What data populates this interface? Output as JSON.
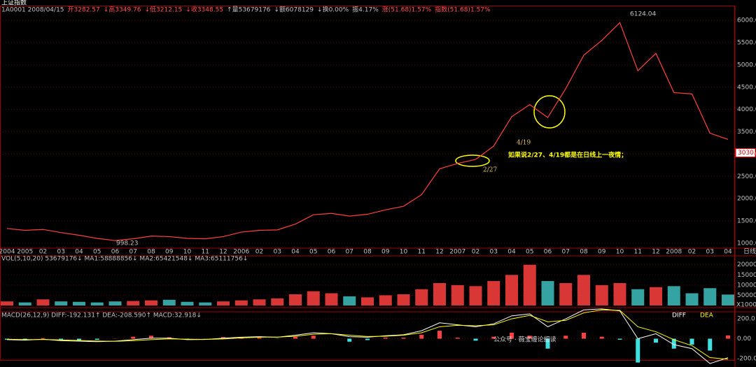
{
  "header": {
    "title": "上证指数",
    "info": [
      {
        "text": "1A0001 2008/04/15",
        "color": "#c0c0c0"
      },
      {
        "text": "开3282.57",
        "color": "#ff5050"
      },
      {
        "text": "↓高3349.76",
        "color": "#ff5050"
      },
      {
        "text": "↓低3212.15",
        "color": "#ff5050"
      },
      {
        "text": "↓收3348.55",
        "color": "#ff5050"
      },
      {
        "text": "↑量53679176",
        "color": "#c0c0c0"
      },
      {
        "text": "↓额6078129",
        "color": "#c0c0c0"
      },
      {
        "text": "↓换0.00%",
        "color": "#c0c0c0"
      },
      {
        "text": "振4.17%",
        "color": "#c0c0c0"
      },
      {
        "text": "涨(51.68)1.57%",
        "color": "#ff5050"
      },
      {
        "text": "指数(51.68)1.57%",
        "color": "#ff5050"
      }
    ]
  },
  "chart_data": [
    {
      "type": "line",
      "color": "#ff4040",
      "categories": [
        "2004",
        "2005",
        "02",
        "03",
        "04",
        "05",
        "06",
        "07",
        "08",
        "09",
        "10",
        "11",
        "12",
        "2006",
        "02",
        "03",
        "04",
        "05",
        "06",
        "07",
        "08",
        "09",
        "10",
        "11",
        "12",
        "2007",
        "02",
        "03",
        "04",
        "05",
        "06",
        "07",
        "08",
        "09",
        "10",
        "11",
        "12",
        "2008",
        "02",
        "03",
        "04"
      ],
      "values": [
        1330,
        1290,
        1310,
        1240,
        1180,
        1110,
        1060,
        1100,
        1160,
        1150,
        1110,
        1100,
        1150,
        1250,
        1290,
        1300,
        1430,
        1640,
        1670,
        1610,
        1650,
        1750,
        1830,
        2090,
        2670,
        2790,
        2880,
        3180,
        3840,
        4110,
        3820,
        4470,
        5220,
        5550,
        5950,
        4870,
        5260,
        4380,
        4350,
        3470,
        3330
      ],
      "x_end_label": "日线",
      "ylim": [
        890,
        6300
      ],
      "yticks": [
        {
          "value": 1000,
          "label": "1000.00"
        },
        {
          "value": 1500,
          "label": "1500.00"
        },
        {
          "value": 2000,
          "label": "2000.00"
        },
        {
          "value": 2500,
          "label": "2500.00"
        },
        {
          "value": 3000,
          "label": "3000.00"
        },
        {
          "value": 3500,
          "label": "3500.00"
        },
        {
          "value": 4000,
          "label": "4000.00"
        },
        {
          "value": 4500,
          "label": "4500.00"
        },
        {
          "value": 5000,
          "label": "5000.00"
        },
        {
          "value": 5500,
          "label": "5500.00"
        },
        {
          "value": 6000,
          "label": "6000.00"
        }
      ],
      "grid": true,
      "high_label": "6124.04",
      "low_label": "998.23",
      "price_box": {
        "value": 3030,
        "label": "3030.0"
      },
      "annotations": [
        "2/27",
        "4/19",
        "如果说2/27、4/19都是在日线上一夜情；"
      ]
    },
    {
      "type": "bar",
      "color": "#ff4040",
      "title": "VOL(5,10,20)  53679176↓ MA1:58888856↓ MA2:65421548↓ MA3:65111756↓",
      "values": [
        20000,
        15000,
        30000,
        20000,
        18000,
        15000,
        20000,
        22000,
        25000,
        28000,
        18000,
        15000,
        20000,
        25000,
        30000,
        35000,
        55000,
        70000,
        60000,
        45000,
        40000,
        50000,
        55000,
        80000,
        110000,
        100000,
        95000,
        120000,
        150000,
        200000,
        120000,
        110000,
        150000,
        100000,
        110000,
        80000,
        90000,
        95000,
        60000,
        85000,
        53679
      ],
      "ylim": [
        0,
        230000
      ],
      "yticks": [
        50000,
        100000,
        150000,
        200000
      ],
      "unit_label": "X1000"
    },
    {
      "type": "macd",
      "title": "MACD(26,12,9) DIFF:-192.131↑ DEA:-208.590↑ MACD:32.918↓",
      "series": [
        {
          "name": "DIFF",
          "color": "#ffffff",
          "values": [
            -10,
            -15,
            -5,
            -20,
            -25,
            -30,
            -25,
            -10,
            5,
            5,
            -10,
            -8,
            5,
            15,
            20,
            15,
            35,
            60,
            50,
            20,
            15,
            30,
            40,
            80,
            160,
            140,
            120,
            150,
            230,
            250,
            120,
            200,
            290,
            300,
            280,
            0,
            50,
            -60,
            -100,
            -250,
            -192
          ]
        },
        {
          "name": "DEA",
          "color": "#ffff00",
          "values": [
            -5,
            -10,
            -8,
            -12,
            -18,
            -24,
            -26,
            -20,
            -10,
            -2,
            -5,
            -7,
            -3,
            8,
            15,
            16,
            25,
            45,
            50,
            35,
            22,
            25,
            35,
            60,
            120,
            135,
            130,
            140,
            200,
            235,
            170,
            185,
            260,
            290,
            285,
            120,
            70,
            -10,
            -70,
            -190,
            -208
          ]
        }
      ],
      "bars": [
        -10,
        -10,
        6,
        -16,
        -14,
        -12,
        2,
        20,
        30,
        14,
        -10,
        -2,
        16,
        14,
        10,
        -2,
        20,
        30,
        0,
        -30,
        -14,
        10,
        10,
        40,
        80,
        10,
        -20,
        20,
        60,
        30,
        -100,
        30,
        60,
        20,
        -10,
        -240,
        -40,
        -100,
        -60,
        -120,
        33
      ],
      "ylim": [
        -285,
        285
      ],
      "yticks": [
        {
          "value": 200,
          "label": "200.0"
        },
        {
          "value": 0,
          "label": "0.00"
        },
        {
          "value": -200,
          "label": "-200.0"
        }
      ]
    }
  ],
  "watermark": "公众号 · 薇宝缠论细读"
}
